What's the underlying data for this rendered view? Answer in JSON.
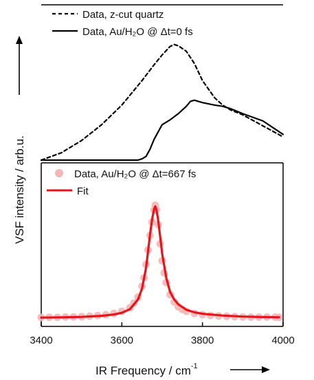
{
  "chart_data": [
    {
      "type": "line",
      "panel": "top",
      "series": [
        {
          "name": "Data, z-cut quartz",
          "style": "dashed",
          "color": "#000000",
          "x": [
            3400,
            3450,
            3500,
            3550,
            3600,
            3650,
            3680,
            3700,
            3720,
            3730,
            3740,
            3760,
            3780,
            3800,
            3830,
            3850,
            3870,
            3900,
            3950,
            4000
          ],
          "y": [
            0.0,
            0.06,
            0.16,
            0.29,
            0.45,
            0.65,
            0.78,
            0.86,
            0.93,
            0.945,
            0.935,
            0.89,
            0.79,
            0.65,
            0.51,
            0.45,
            0.41,
            0.37,
            0.28,
            0.19
          ]
        },
        {
          "name": "Data, Au/H₂O @ Δt=0 fs",
          "style": "solid",
          "color": "#000000",
          "x": [
            3400,
            3600,
            3640,
            3650,
            3660,
            3670,
            3680,
            3690,
            3700,
            3720,
            3740,
            3760,
            3770,
            3780,
            3800,
            3830,
            3850,
            3870,
            3900,
            3950,
            4000
          ],
          "y": [
            0.0,
            0.0,
            0.0,
            0.01,
            0.03,
            0.09,
            0.17,
            0.23,
            0.29,
            0.33,
            0.38,
            0.44,
            0.48,
            0.49,
            0.47,
            0.45,
            0.44,
            0.42,
            0.38,
            0.32,
            0.21
          ]
        }
      ],
      "xlim": [
        3400,
        4000
      ],
      "ylim": [
        0,
        1.0
      ]
    },
    {
      "type": "scatter",
      "panel": "bottom",
      "series": [
        {
          "name": "Data, Au/H₂O @ Δt=667 fs",
          "style": "markers",
          "color": "#f4b6b6",
          "x": [
            3400,
            3420,
            3440,
            3460,
            3480,
            3500,
            3520,
            3540,
            3560,
            3580,
            3600,
            3620,
            3630,
            3640,
            3650,
            3655,
            3660,
            3665,
            3670,
            3675,
            3680,
            3683,
            3686,
            3690,
            3695,
            3700,
            3705,
            3710,
            3720,
            3730,
            3740,
            3750,
            3760,
            3780,
            3800,
            3820,
            3840,
            3860,
            3880,
            3900,
            3920,
            3940,
            3960,
            3980,
            3990
          ],
          "y": [
            0.012,
            0.013,
            0.012,
            0.015,
            0.016,
            0.018,
            0.022,
            0.027,
            0.034,
            0.045,
            0.062,
            0.092,
            0.13,
            0.18,
            0.27,
            0.34,
            0.45,
            0.57,
            0.69,
            0.8,
            0.9,
            0.94,
            0.9,
            0.78,
            0.62,
            0.48,
            0.38,
            0.3,
            0.2,
            0.14,
            0.1,
            0.078,
            0.062,
            0.045,
            0.035,
            0.028,
            0.024,
            0.021,
            0.018,
            0.016,
            0.014,
            0.014,
            0.015,
            0.014,
            0.013
          ]
        },
        {
          "name": "Fit",
          "style": "solid",
          "color": "#e8141c",
          "x": [
            3400,
            3450,
            3500,
            3550,
            3580,
            3600,
            3620,
            3640,
            3650,
            3660,
            3665,
            3670,
            3675,
            3680,
            3683,
            3686,
            3690,
            3695,
            3700,
            3710,
            3720,
            3730,
            3740,
            3760,
            3780,
            3800,
            3850,
            3900,
            3950,
            3990
          ],
          "y": [
            0.01,
            0.012,
            0.016,
            0.025,
            0.036,
            0.05,
            0.08,
            0.16,
            0.25,
            0.42,
            0.56,
            0.7,
            0.82,
            0.91,
            0.93,
            0.9,
            0.82,
            0.68,
            0.54,
            0.34,
            0.22,
            0.16,
            0.12,
            0.075,
            0.054,
            0.042,
            0.027,
            0.019,
            0.015,
            0.013
          ]
        }
      ],
      "xlim": [
        3400,
        4000
      ],
      "ylim": [
        0,
        1.0
      ],
      "xlabel": "IR Frequency / cm",
      "xlabel_superscript": "-1",
      "xticks": [
        "3400",
        "3600",
        "3800",
        "4000"
      ]
    }
  ],
  "ylabel": "VSF intensity / arb.u.",
  "legend_top": [
    "Data, z-cut quartz",
    "Data, Au/H₂O @ Δt=0 fs"
  ],
  "legend_bottom": [
    "Data, Au/H₂O @ Δt=667 fs",
    "Fit"
  ]
}
